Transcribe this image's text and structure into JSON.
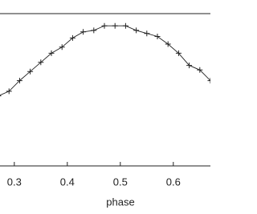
{
  "chart_data": {
    "type": "line",
    "x_label": "phase",
    "x": [
      0.27,
      0.29,
      0.31,
      0.33,
      0.35,
      0.37,
      0.39,
      0.41,
      0.43,
      0.45,
      0.47,
      0.49,
      0.51,
      0.53,
      0.55,
      0.57,
      0.59,
      0.61,
      0.63,
      0.65,
      0.67
    ],
    "series": [
      {
        "color": "#222222",
        "values": [
          0.46,
          0.49,
          0.56,
          0.62,
          0.68,
          0.74,
          0.78,
          0.84,
          0.88,
          0.89,
          0.92,
          0.92,
          0.92,
          0.89,
          0.87,
          0.85,
          0.8,
          0.74,
          0.66,
          0.63,
          0.56
        ]
      }
    ],
    "xlim": [
      0.273,
      0.67
    ],
    "ylim": [
      0,
      1
    ],
    "xticks": [
      0.3,
      0.4,
      0.5,
      0.6
    ],
    "marker": "+"
  }
}
